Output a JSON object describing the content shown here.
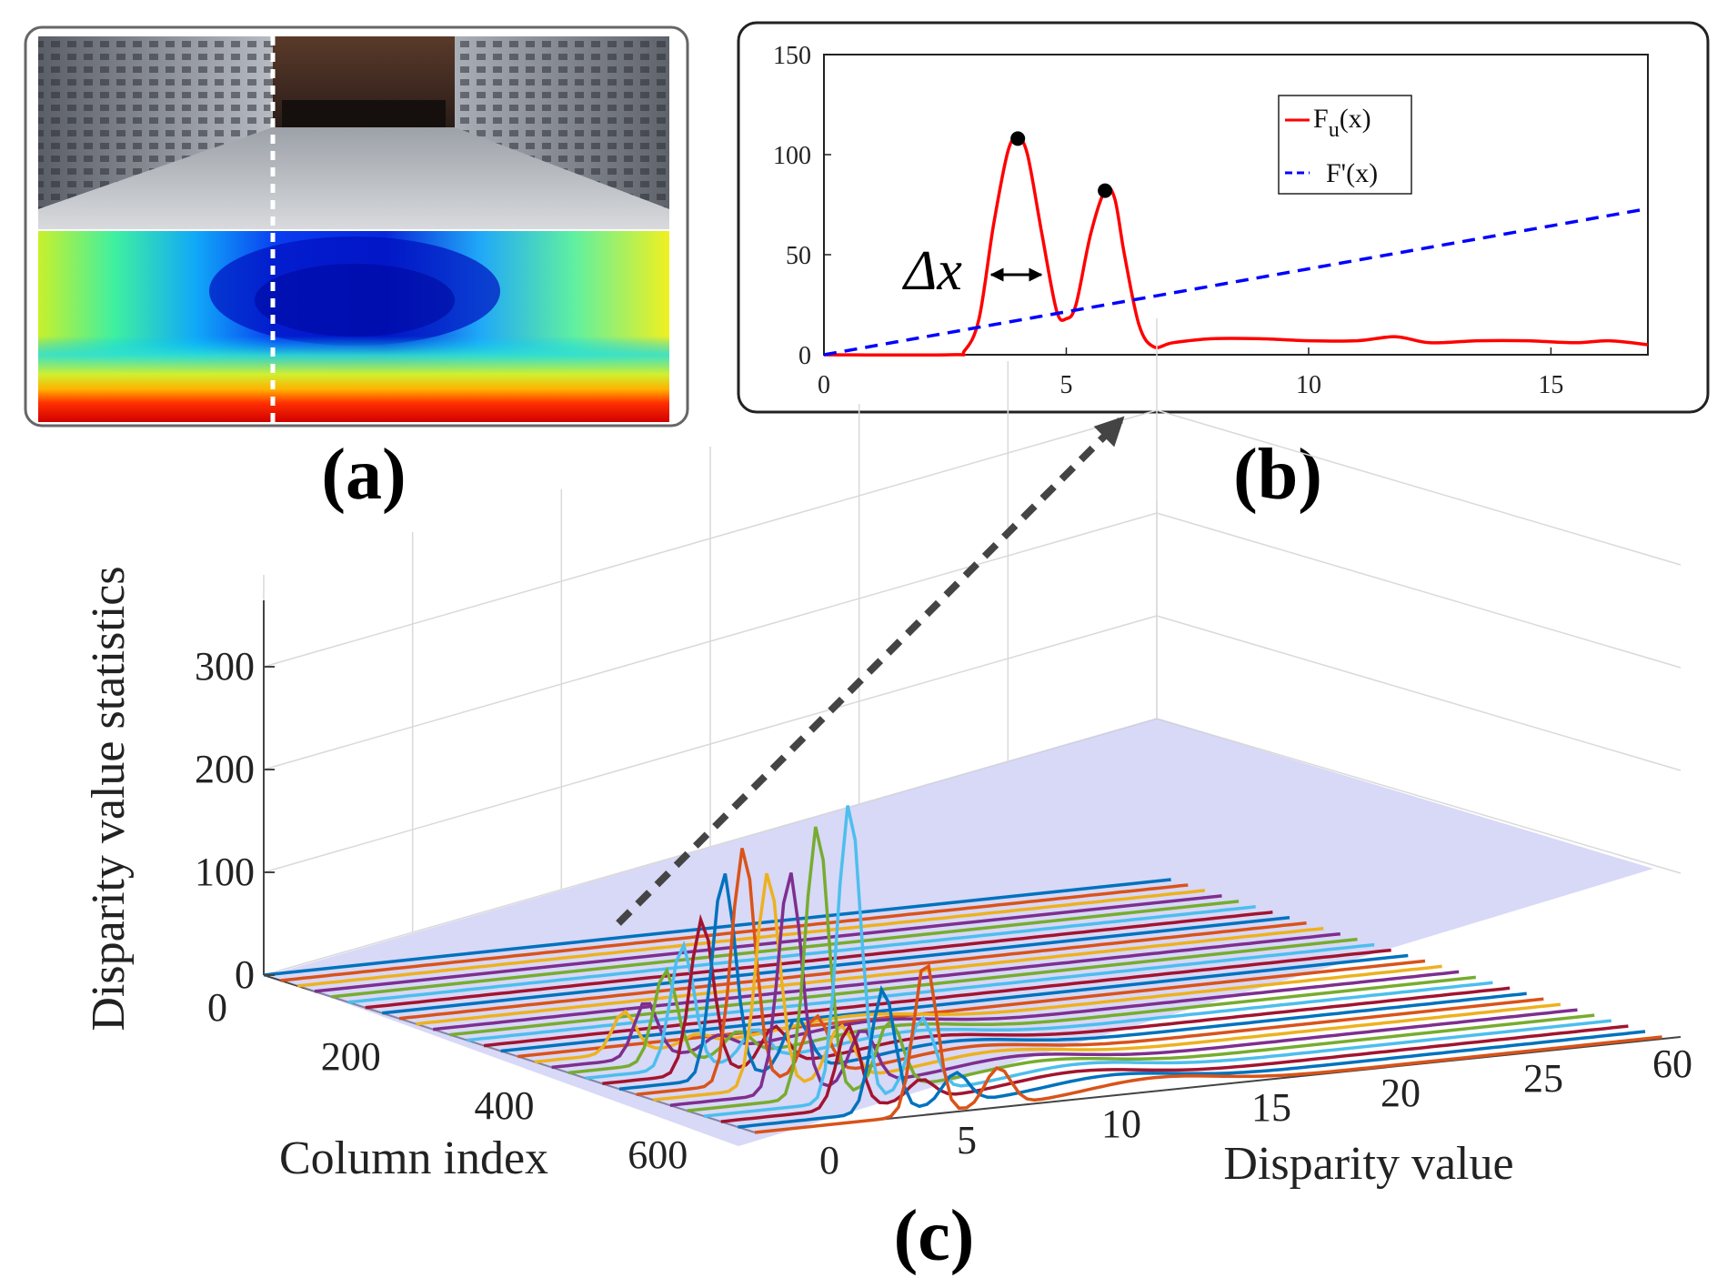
{
  "panel_labels": {
    "a": "(a)",
    "b": "(b)",
    "c": "(c)"
  },
  "colors": {
    "fu_curve": "#ff0000",
    "fprime_line": "#0000ff",
    "plane_fill": "#b8b8f0",
    "series_palette": [
      "#0072bd",
      "#d95319",
      "#edb120",
      "#7e2f8e",
      "#77ac30",
      "#4dbeee",
      "#a2142f"
    ]
  },
  "panel_a": {
    "icons": [
      "corridor-photo",
      "disparity-map"
    ]
  },
  "chart_data": [
    {
      "type": "line",
      "panel": "b",
      "xlim": [
        0,
        17
      ],
      "ylim": [
        0,
        150
      ],
      "xticks": [
        0,
        5,
        10,
        15
      ],
      "yticks": [
        0,
        50,
        100,
        150
      ],
      "grid": false,
      "legend_position": "top-right",
      "legend": [
        {
          "name": "F",
          "subscript": "u",
          "suffix": "(x)"
        },
        {
          "name": "F'(x)"
        }
      ],
      "annotation": "Δx",
      "series": [
        {
          "name": "Fu(x)",
          "x": [
            0,
            2.6,
            2.9,
            3.2,
            3.5,
            3.8,
            4.0,
            4.2,
            4.5,
            4.8,
            5.0,
            5.2,
            5.5,
            5.8,
            6.0,
            6.2,
            6.5,
            6.8,
            7.2,
            8,
            9,
            10,
            11,
            11.8,
            12.5,
            13.5,
            14.5,
            15.5,
            16.2,
            17
          ],
          "y": [
            0,
            0,
            2,
            18,
            65,
            102,
            108,
            100,
            60,
            22,
            18,
            25,
            60,
            82,
            78,
            50,
            15,
            4,
            6,
            8,
            8,
            7,
            7,
            9,
            6,
            7,
            7,
            6,
            7,
            5
          ]
        },
        {
          "name": "F'(x)",
          "style": "dashed",
          "x": [
            0,
            17
          ],
          "y": [
            0,
            73
          ]
        }
      ],
      "peaks": [
        {
          "x": 4.0,
          "y": 108
        },
        {
          "x": 5.8,
          "y": 82
        }
      ]
    },
    {
      "type": "line",
      "panel": "c",
      "projection": "3d",
      "xlabel": "Disparity value",
      "ylabel": "Column index",
      "zlabel": "Disparity value statistics",
      "xticks": [
        0,
        5,
        10,
        15,
        20,
        25,
        60
      ],
      "yticks": [
        0,
        200,
        400,
        600
      ],
      "zticks": [
        0,
        100,
        200,
        300
      ],
      "grid": true,
      "series_count": 30,
      "peak_heights": [
        0,
        0,
        0,
        0,
        0,
        0,
        0,
        0,
        0,
        0,
        0,
        0,
        0,
        0,
        0,
        0,
        40,
        55,
        90,
        120,
        150,
        200,
        230,
        210,
        215,
        265,
        290,
        80,
        120,
        150
      ],
      "peak_disparities": [
        2.6,
        2.6,
        2.6,
        2.6,
        2.6,
        2.6,
        2.6,
        2.6,
        2.6,
        2.6,
        2.6,
        2.6,
        2.6,
        2.6,
        2.6,
        2.6,
        2.8,
        3.0,
        3.1,
        3.1,
        3.2,
        3.4,
        3.5,
        3.8,
        4.0,
        4.4,
        5.0,
        4.3,
        5.0,
        6.0
      ]
    }
  ]
}
